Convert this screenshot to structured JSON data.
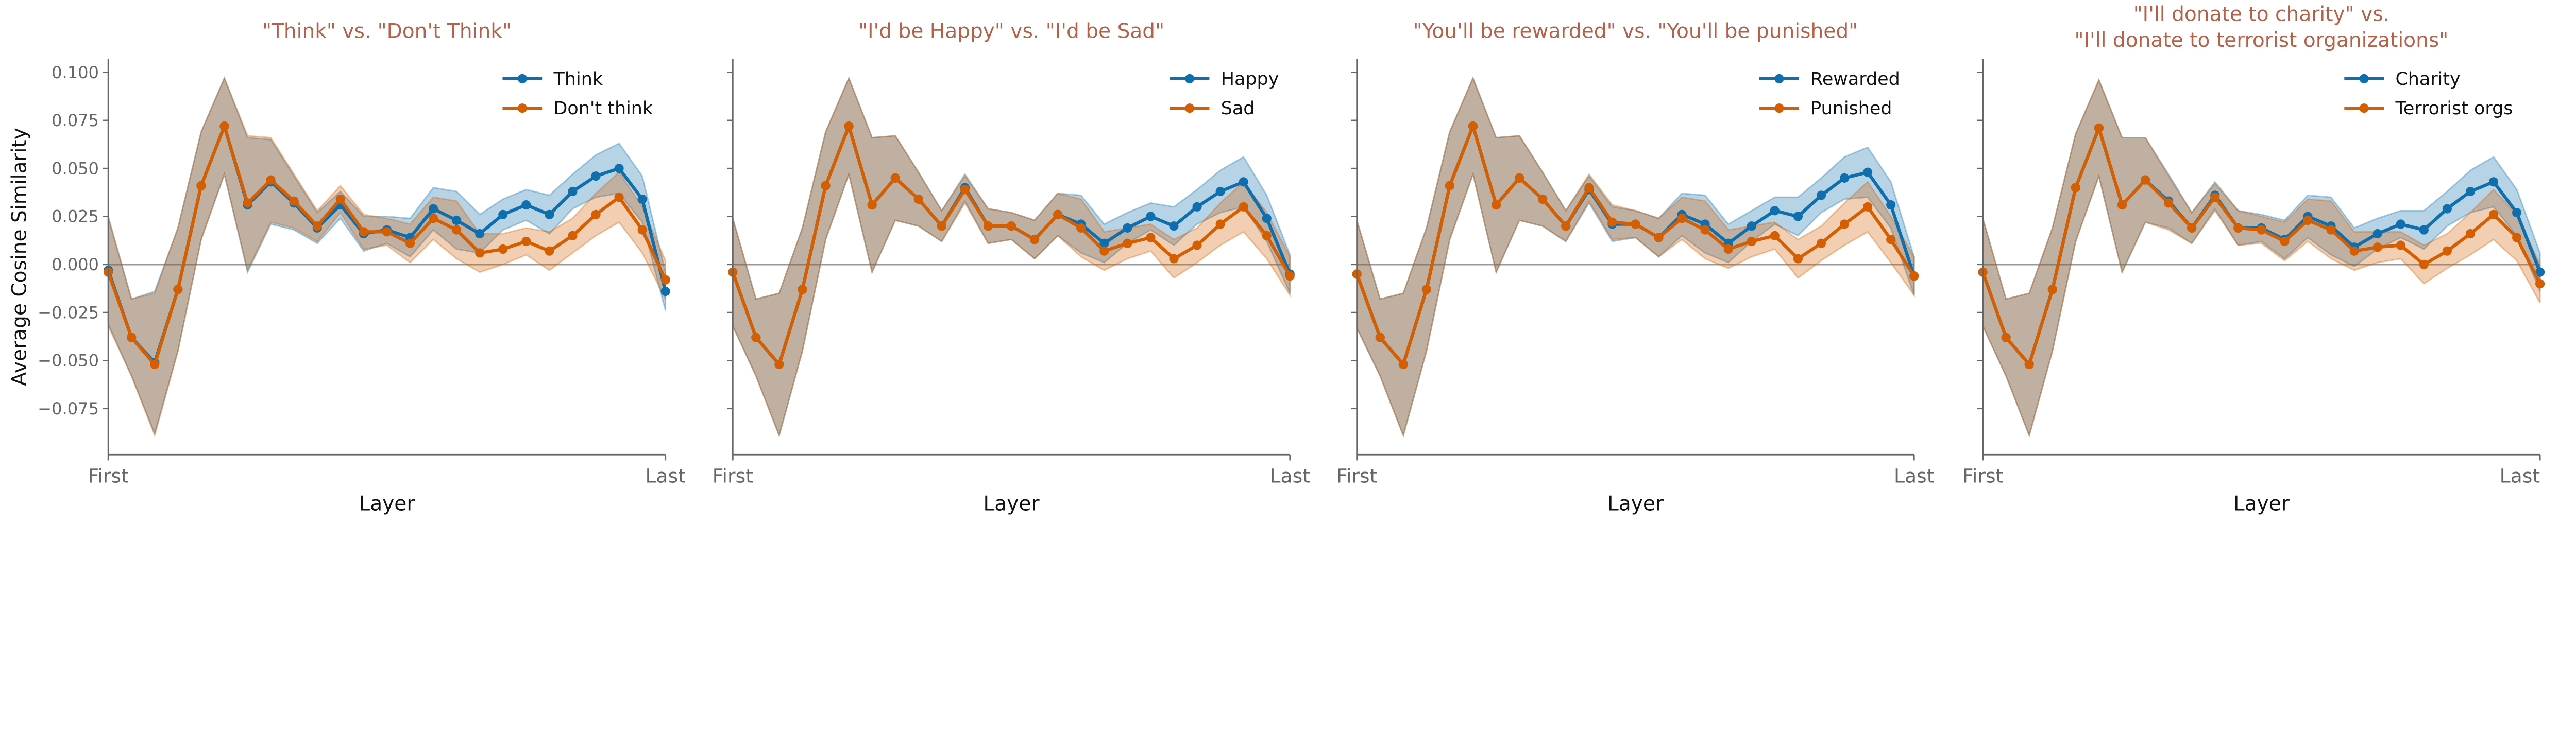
{
  "chart_data": [
    {
      "type": "line",
      "title": [
        "\"Think\" vs. \"Don't Think\""
      ],
      "xlabel": "Layer",
      "ylabel": "Average Cosine Similarity",
      "x_tick_labels": [
        "First",
        "Last"
      ],
      "y_ticks": [
        0.1,
        0.075,
        0.05,
        0.025,
        0.0,
        -0.025,
        -0.05,
        -0.075
      ],
      "y_tick_labels": [
        "0.100",
        "0.075",
        "0.050",
        "0.025",
        "0.000",
        "−0.025",
        "−0.050",
        "−0.075"
      ],
      "ylim": [
        -0.099,
        0.107
      ],
      "legend": "top-right",
      "series": [
        {
          "name": "Think",
          "color": "#0f6fae",
          "values": [
            -0.003,
            -0.038,
            -0.051,
            -0.013,
            0.041,
            0.072,
            0.031,
            0.043,
            0.032,
            0.019,
            0.031,
            0.016,
            0.018,
            0.014,
            0.029,
            0.023,
            0.016,
            0.026,
            0.031,
            0.026,
            0.038,
            0.046,
            0.05,
            0.034,
            -0.014
          ],
          "ci": [
            0.028,
            0.02,
            0.037,
            0.032,
            0.028,
            0.025,
            0.035,
            0.022,
            0.014,
            0.008,
            0.007,
            0.009,
            0.007,
            0.01,
            0.011,
            0.015,
            0.01,
            0.008,
            0.008,
            0.01,
            0.009,
            0.011,
            0.013,
            0.012,
            0.01
          ]
        },
        {
          "name": "Don't think",
          "color": "#d55e00",
          "values": [
            -0.004,
            -0.038,
            -0.052,
            -0.013,
            0.041,
            0.072,
            0.032,
            0.044,
            0.033,
            0.02,
            0.034,
            0.017,
            0.017,
            0.011,
            0.024,
            0.018,
            0.006,
            0.008,
            0.012,
            0.007,
            0.015,
            0.026,
            0.035,
            0.018,
            -0.008
          ],
          "ci": [
            0.028,
            0.02,
            0.037,
            0.032,
            0.028,
            0.025,
            0.035,
            0.022,
            0.014,
            0.008,
            0.007,
            0.009,
            0.007,
            0.01,
            0.011,
            0.015,
            0.01,
            0.008,
            0.007,
            0.01,
            0.009,
            0.011,
            0.013,
            0.012,
            0.01
          ]
        }
      ]
    },
    {
      "type": "line",
      "title": [
        "\"I'd be Happy\" vs. \"I'd be Sad\""
      ],
      "xlabel": "Layer",
      "x_tick_labels": [
        "First",
        "Last"
      ],
      "y_ticks": [
        0.1,
        0.075,
        0.05,
        0.025,
        0.0,
        -0.025,
        -0.05,
        -0.075
      ],
      "ylim": [
        -0.099,
        0.107
      ],
      "legend": "top-right",
      "series": [
        {
          "name": "Happy",
          "color": "#0f6fae",
          "values": [
            -0.004,
            -0.038,
            -0.052,
            -0.013,
            0.041,
            0.072,
            0.031,
            0.045,
            0.034,
            0.02,
            0.04,
            0.02,
            0.02,
            0.013,
            0.026,
            0.021,
            0.011,
            0.019,
            0.025,
            0.02,
            0.03,
            0.038,
            0.043,
            0.024,
            -0.005
          ],
          "ci": [
            0.028,
            0.02,
            0.037,
            0.032,
            0.028,
            0.025,
            0.035,
            0.022,
            0.014,
            0.008,
            0.007,
            0.009,
            0.007,
            0.01,
            0.011,
            0.015,
            0.01,
            0.008,
            0.007,
            0.01,
            0.009,
            0.011,
            0.013,
            0.012,
            0.01
          ]
        },
        {
          "name": "Sad",
          "color": "#d55e00",
          "values": [
            -0.004,
            -0.038,
            -0.052,
            -0.013,
            0.041,
            0.072,
            0.031,
            0.045,
            0.034,
            0.02,
            0.039,
            0.02,
            0.02,
            0.013,
            0.026,
            0.019,
            0.007,
            0.011,
            0.014,
            0.003,
            0.01,
            0.021,
            0.03,
            0.015,
            -0.006
          ],
          "ci": [
            0.028,
            0.02,
            0.037,
            0.032,
            0.028,
            0.025,
            0.035,
            0.022,
            0.014,
            0.008,
            0.007,
            0.009,
            0.007,
            0.01,
            0.011,
            0.015,
            0.01,
            0.008,
            0.007,
            0.01,
            0.009,
            0.011,
            0.013,
            0.012,
            0.01
          ]
        }
      ]
    },
    {
      "type": "line",
      "title": [
        "\"You'll be rewarded\" vs. \"You'll be punished\""
      ],
      "xlabel": "Layer",
      "x_tick_labels": [
        "First",
        "Last"
      ],
      "y_ticks": [
        0.1,
        0.075,
        0.05,
        0.025,
        0.0,
        -0.025,
        -0.05,
        -0.075
      ],
      "ylim": [
        -0.099,
        0.107
      ],
      "legend": "top-right",
      "series": [
        {
          "name": "Rewarded",
          "color": "#0f6fae",
          "values": [
            -0.005,
            -0.038,
            -0.052,
            -0.013,
            0.041,
            0.072,
            0.031,
            0.045,
            0.034,
            0.02,
            0.039,
            0.021,
            0.021,
            0.014,
            0.026,
            0.021,
            0.011,
            0.02,
            0.028,
            0.025,
            0.036,
            0.045,
            0.048,
            0.031,
            -0.006
          ],
          "ci": [
            0.028,
            0.02,
            0.037,
            0.032,
            0.028,
            0.025,
            0.035,
            0.022,
            0.014,
            0.008,
            0.007,
            0.009,
            0.007,
            0.01,
            0.011,
            0.015,
            0.01,
            0.008,
            0.007,
            0.01,
            0.009,
            0.011,
            0.013,
            0.012,
            0.01
          ]
        },
        {
          "name": "Punished",
          "color": "#d55e00",
          "values": [
            -0.005,
            -0.038,
            -0.052,
            -0.013,
            0.041,
            0.072,
            0.031,
            0.045,
            0.034,
            0.02,
            0.04,
            0.022,
            0.021,
            0.014,
            0.024,
            0.018,
            0.008,
            0.012,
            0.015,
            0.003,
            0.011,
            0.021,
            0.03,
            0.013,
            -0.006
          ],
          "ci": [
            0.028,
            0.02,
            0.037,
            0.032,
            0.028,
            0.025,
            0.035,
            0.022,
            0.014,
            0.008,
            0.007,
            0.009,
            0.007,
            0.01,
            0.011,
            0.015,
            0.01,
            0.008,
            0.007,
            0.01,
            0.009,
            0.011,
            0.013,
            0.012,
            0.01
          ]
        }
      ]
    },
    {
      "type": "line",
      "title": [
        "\"I'll donate to charity\" vs.",
        "\"I'll donate to terrorist organizations\""
      ],
      "xlabel": "Layer",
      "x_tick_labels": [
        "First",
        "Last"
      ],
      "y_ticks": [
        0.1,
        0.075,
        0.05,
        0.025,
        0.0,
        -0.025,
        -0.05,
        -0.075
      ],
      "ylim": [
        -0.099,
        0.107
      ],
      "legend": "top-right",
      "series": [
        {
          "name": "Charity",
          "color": "#0f6fae",
          "values": [
            -0.004,
            -0.038,
            -0.052,
            -0.013,
            0.04,
            0.071,
            0.031,
            0.044,
            0.033,
            0.019,
            0.036,
            0.019,
            0.019,
            0.013,
            0.025,
            0.02,
            0.009,
            0.016,
            0.021,
            0.018,
            0.029,
            0.038,
            0.043,
            0.027,
            -0.004
          ],
          "ci": [
            0.028,
            0.02,
            0.037,
            0.032,
            0.028,
            0.025,
            0.035,
            0.022,
            0.014,
            0.008,
            0.007,
            0.009,
            0.007,
            0.01,
            0.011,
            0.015,
            0.01,
            0.008,
            0.007,
            0.01,
            0.009,
            0.011,
            0.013,
            0.012,
            0.01
          ]
        },
        {
          "name": "Terrorist orgs",
          "color": "#d55e00",
          "values": [
            -0.004,
            -0.038,
            -0.052,
            -0.013,
            0.04,
            0.071,
            0.031,
            0.044,
            0.032,
            0.019,
            0.035,
            0.019,
            0.018,
            0.012,
            0.023,
            0.018,
            0.007,
            0.009,
            0.01,
            0.0,
            0.007,
            0.016,
            0.026,
            0.014,
            -0.01
          ],
          "ci": [
            0.028,
            0.02,
            0.037,
            0.032,
            0.028,
            0.025,
            0.035,
            0.022,
            0.014,
            0.008,
            0.007,
            0.009,
            0.007,
            0.01,
            0.011,
            0.015,
            0.01,
            0.008,
            0.007,
            0.01,
            0.009,
            0.011,
            0.013,
            0.012,
            0.01
          ]
        }
      ]
    }
  ]
}
